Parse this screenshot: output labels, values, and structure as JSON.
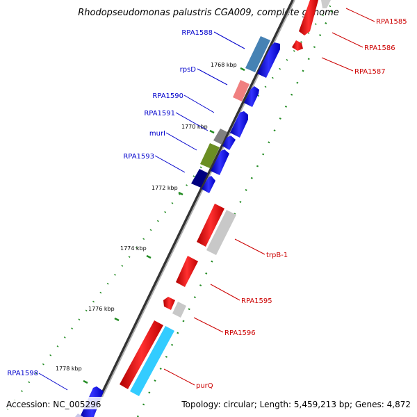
{
  "title": "Rhodopseudomonas palustris CGA009, complete genome",
  "footer": {
    "accession": "Accession: NC_005296",
    "summary": "Topology: circular; Length: 5,459,213 bp; Genes: 4,872"
  },
  "ticks": [
    "1768 kbp",
    "1770 kbp",
    "1772 kbp",
    "1774 kbp",
    "1776 kbp",
    "1778 kbp"
  ],
  "forward_labels": [
    "RPA1588",
    "rpsD",
    "RPA1590",
    "RPA1591",
    "murI",
    "RPA1593",
    "RPA1598"
  ],
  "reverse_labels": [
    "RPA1585",
    "RPA1586",
    "RPA1587",
    "trpB-1",
    "RPA1595",
    "RPA1596",
    "purQ"
  ],
  "colors": {
    "forward_label": "#0000cc",
    "reverse_label": "#cc0000",
    "forward_gene": "#0000ff",
    "reverse_gene": "#ff0000",
    "tick_dot": "#228b22",
    "backbone": "#808080"
  }
}
